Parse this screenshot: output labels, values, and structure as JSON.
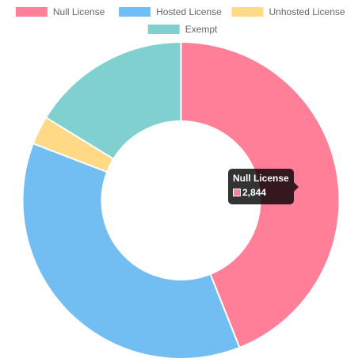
{
  "chart_data": {
    "type": "pie",
    "categories": [
      "Null License",
      "Hosted License",
      "Unhosted License",
      "Exempt"
    ],
    "values": [
      2844,
      2385,
      189,
      1050
    ],
    "colors": [
      "#ff7f98",
      "#72bdf1",
      "#ffd985",
      "#80d0d0"
    ],
    "legend_position": "top",
    "hole": 0.5
  },
  "tooltip": {
    "title": "Null License",
    "value": "2,844",
    "color": "#ff7f98"
  }
}
